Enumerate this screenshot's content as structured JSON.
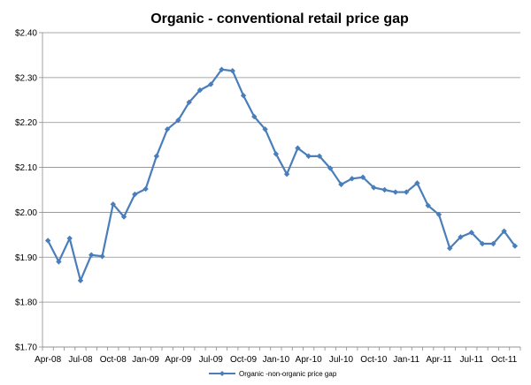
{
  "chart_data": {
    "type": "line",
    "title": "Organic - conventional  retail price gap",
    "xlabel": "",
    "ylabel": "",
    "ylim": [
      1.7,
      2.4
    ],
    "yticks": [
      "$1.70",
      "$1.80",
      "$1.90",
      "$2.00",
      "$2.10",
      "$2.20",
      "$2.30",
      "$2.40"
    ],
    "xticks": [
      "Apr-08",
      "Jul-08",
      "Oct-08",
      "Jan-09",
      "Apr-09",
      "Jul-09",
      "Oct-09",
      "Jan-10",
      "Apr-10",
      "Jul-10",
      "Oct-10",
      "Jan-11",
      "Apr-11",
      "Jul-11",
      "Oct-11"
    ],
    "grid": true,
    "legend_position": "bottom",
    "line_color": "#4a7ebb",
    "series": [
      {
        "name": "Organic -non-organic price gap",
        "values": [
          1.937,
          1.89,
          1.942,
          1.848,
          1.905,
          1.902,
          2.018,
          1.99,
          2.04,
          2.052,
          2.125,
          2.185,
          2.205,
          2.245,
          2.272,
          2.285,
          2.318,
          2.315,
          2.26,
          2.213,
          2.185,
          2.13,
          2.085,
          2.143,
          2.125,
          2.125,
          2.098,
          2.062,
          2.075,
          2.078,
          2.055,
          2.05,
          2.045,
          2.045,
          2.065,
          2.015,
          1.995,
          1.92,
          1.945,
          1.955,
          1.93,
          1.93,
          1.958,
          1.925
        ]
      }
    ]
  }
}
